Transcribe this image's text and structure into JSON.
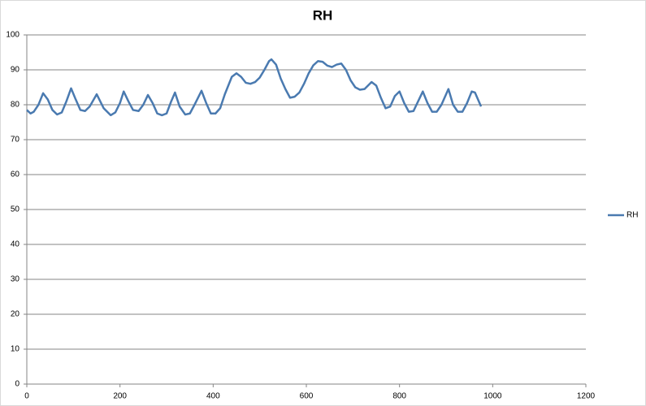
{
  "chart_data": {
    "type": "line",
    "title": "RH",
    "x": [
      0,
      8,
      15,
      25,
      35,
      45,
      55,
      65,
      75,
      85,
      95,
      105,
      115,
      125,
      135,
      150,
      165,
      180,
      190,
      200,
      208,
      218,
      228,
      240,
      250,
      260,
      270,
      280,
      290,
      300,
      310,
      318,
      328,
      340,
      350,
      360,
      375,
      385,
      395,
      405,
      415,
      425,
      440,
      450,
      460,
      470,
      480,
      490,
      500,
      510,
      520,
      525,
      535,
      545,
      555,
      565,
      575,
      585,
      595,
      605,
      615,
      625,
      635,
      645,
      655,
      665,
      675,
      685,
      695,
      705,
      715,
      725,
      740,
      750,
      760,
      770,
      780,
      790,
      800,
      810,
      820,
      830,
      840,
      850,
      860,
      870,
      880,
      890,
      905,
      915,
      925,
      935,
      945,
      955,
      962,
      975
    ],
    "series": [
      {
        "name": "RH",
        "color": "#4a7ab0",
        "values": [
          78.5,
          77.5,
          78,
          80,
          83.3,
          81.5,
          78.5,
          77.2,
          77.8,
          81,
          84.7,
          81.5,
          78.5,
          78.2,
          79.5,
          83,
          79,
          77,
          77.8,
          80.5,
          83.8,
          81,
          78.5,
          78.2,
          80,
          82.8,
          80.5,
          77.5,
          77,
          77.5,
          81,
          83.5,
          79.5,
          77.2,
          77.5,
          80,
          84,
          80.5,
          77.5,
          77.5,
          79,
          83,
          88,
          89,
          88,
          86.3,
          86,
          86.5,
          87.8,
          90,
          92.5,
          93,
          91.5,
          87.5,
          84.5,
          82,
          82.3,
          83.5,
          86,
          89,
          91.3,
          92.5,
          92.3,
          91.2,
          90.8,
          91.5,
          91.8,
          90,
          87,
          85,
          84.3,
          84.5,
          86.5,
          85.5,
          82,
          79,
          79.5,
          82.5,
          83.8,
          80.5,
          78,
          78.2,
          81,
          83.8,
          80.5,
          78,
          78,
          80,
          84.5,
          80,
          78,
          78,
          80.5,
          83.8,
          83.5,
          79.5
        ]
      }
    ],
    "xlim": [
      0,
      1200
    ],
    "xticks": [
      0,
      200,
      400,
      600,
      800,
      1000,
      1200
    ],
    "ylim": [
      0,
      100
    ],
    "yticks": [
      0,
      10,
      20,
      30,
      40,
      50,
      60,
      70,
      80,
      90,
      100
    ],
    "grid": true,
    "legend": "right"
  }
}
